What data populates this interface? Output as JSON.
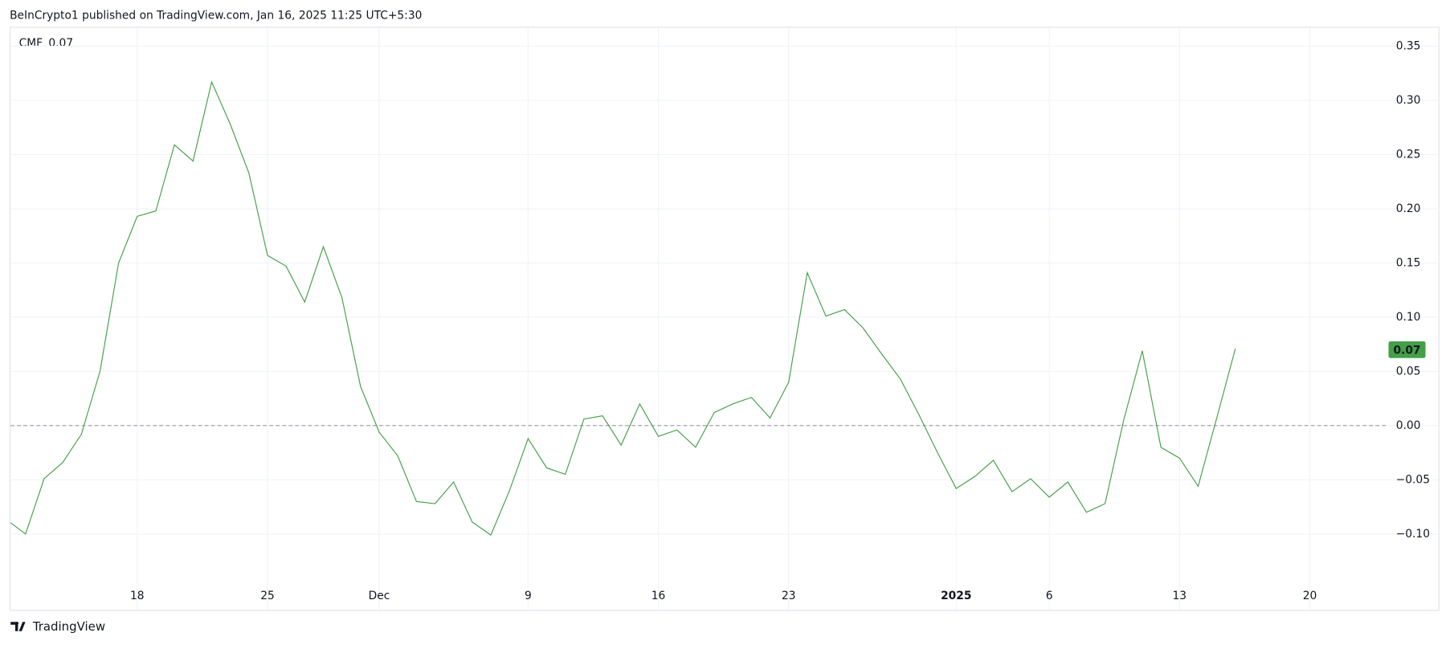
{
  "header": "BeInCrypto1 published on TradingView.com, Jan 16, 2025 11:25 UTC+5:30",
  "footer": "TradingView",
  "chart_data": {
    "type": "line",
    "indicator": "CMF",
    "current_value": 0.07,
    "baseline": 0,
    "categories": [
      null,
      null,
      null,
      null,
      null,
      null,
      null,
      "18",
      null,
      null,
      null,
      null,
      null,
      null,
      "25",
      null,
      null,
      null,
      null,
      null,
      "Dec",
      null,
      null,
      null,
      null,
      null,
      null,
      null,
      "9",
      null,
      null,
      null,
      null,
      null,
      null,
      "16",
      null,
      null,
      null,
      null,
      null,
      null,
      "23",
      null,
      null,
      null,
      null,
      null,
      null,
      null,
      null,
      "2025",
      null,
      null,
      null,
      null,
      "6",
      null,
      null,
      null,
      null,
      null,
      null,
      "13",
      null,
      null,
      null,
      null,
      null,
      null,
      "20"
    ],
    "series": [
      {
        "name": "CMF",
        "color": "#43a047",
        "values": [
          -0.087,
          -0.1,
          -0.049,
          -0.034,
          -0.008,
          0.05,
          0.15,
          0.193,
          0.198,
          0.259,
          0.244,
          0.317,
          0.278,
          0.233,
          0.157,
          0.147,
          0.114,
          0.165,
          0.118,
          0.036,
          -0.006,
          -0.028,
          -0.07,
          -0.072,
          -0.052,
          -0.089,
          -0.101,
          -0.06,
          -0.012,
          -0.039,
          -0.045,
          0.006,
          0.009,
          -0.018,
          0.02,
          -0.01,
          -0.004,
          -0.02,
          0.012,
          0.02,
          0.026,
          0.007,
          0.04,
          0.141,
          0.101,
          0.107,
          0.09,
          0.066,
          0.043,
          0.01,
          -0.025,
          -0.058,
          -0.047,
          -0.032,
          -0.061,
          -0.049,
          -0.066,
          -0.052,
          -0.08,
          -0.072,
          0.005,
          0.069,
          -0.02,
          -0.03,
          -0.056,
          0.007,
          0.071,
          null,
          null,
          null,
          null
        ]
      }
    ],
    "ylim": [
      -0.17,
      0.367
    ],
    "yticks": [
      0.35,
      {
        "value": 0.3,
        "label": "0.30"
      },
      0.25,
      {
        "value": 0.2,
        "label": "0.20"
      },
      0.15,
      {
        "value": 0.1,
        "label": "0.10"
      },
      0.05,
      {
        "value": 0,
        "label": "0.00"
      },
      {
        "value": -0.05,
        "label": "−0.05"
      },
      {
        "value": -0.1,
        "label": "−0.10"
      }
    ],
    "grid": true
  }
}
